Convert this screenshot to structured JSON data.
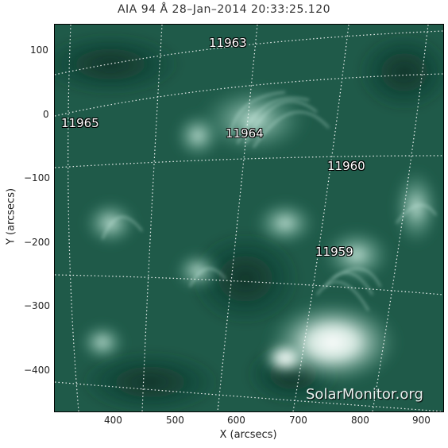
{
  "title": "AIA 94 Å 28–Jan–2014 20:33:25.120",
  "axes": {
    "xlabel": "X (arcsecs)",
    "ylabel": "Y (arcsecs)",
    "x_ticks": [
      "400",
      "500",
      "600",
      "700",
      "800",
      "900"
    ],
    "y_ticks": [
      "100",
      "0",
      "−100",
      "−200",
      "−300",
      "−400"
    ]
  },
  "active_regions": [
    {
      "id": "ar-11963",
      "label": "11963"
    },
    {
      "id": "ar-11965",
      "label": "11965"
    },
    {
      "id": "ar-11964",
      "label": "11964"
    },
    {
      "id": "ar-11960",
      "label": "11960"
    },
    {
      "id": "ar-11959",
      "label": "11959"
    }
  ],
  "watermark": "SolarMonitor.org",
  "colors": {
    "background": "#1f5a49",
    "dark": "#123d31",
    "bright": "#d9f0e8"
  }
}
